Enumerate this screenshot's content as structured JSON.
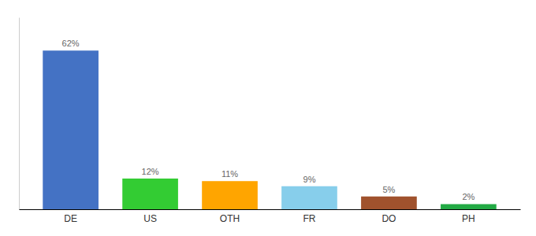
{
  "chart_data": {
    "type": "bar",
    "categories": [
      "DE",
      "US",
      "OTH",
      "FR",
      "DO",
      "PH"
    ],
    "values": [
      62,
      12,
      11,
      9,
      5,
      2
    ],
    "value_labels": [
      "62%",
      "12%",
      "11%",
      "9%",
      "5%",
      "2%"
    ],
    "colors": [
      "#4472C4",
      "#33CC33",
      "#FFA500",
      "#87CEEB",
      "#A0522D",
      "#22AA44"
    ],
    "ylim": [
      0,
      75
    ],
    "data_labels": true,
    "tick_labels": "x",
    "grid": false
  }
}
